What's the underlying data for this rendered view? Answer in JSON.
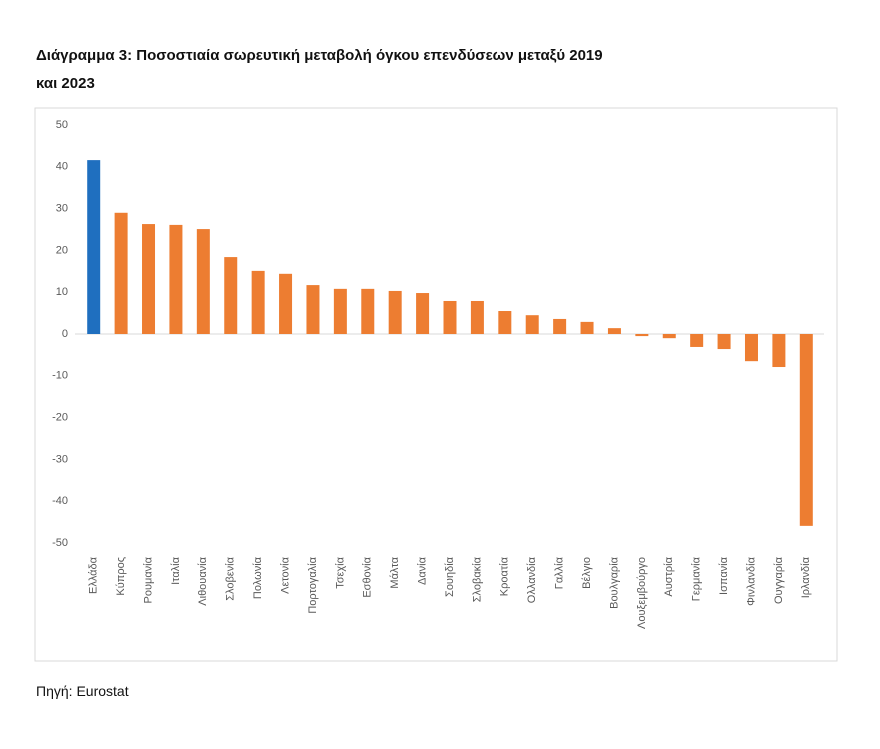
{
  "title_lines": [
    "Διάγραμμα 3:  Ποσοστιαία σωρευτική μεταβολή όγκου επενδύσεων μεταξύ 2019",
    "και 2023"
  ],
  "source": "Πηγή: Eurostat",
  "chart_data": {
    "type": "bar",
    "categories": [
      "Ελλάδα",
      "Κύπρος",
      "Ρουμανία",
      "Ιταλία",
      "Λιθουανία",
      "Σλοβενία",
      "Πολωνία",
      "Λετονία",
      "Πορτογαλία",
      "Τσεχία",
      "Εσθονία",
      "Μάλτα",
      "Δανία",
      "Σουηδία",
      "Σλοβακία",
      "Κροατία",
      "Ολλανδία",
      "Γαλλία",
      "Βέλγιο",
      "Βουλγαρία",
      "Λουξεμβούργο",
      "Αυστρία",
      "Γερμανία",
      "Ισπανία",
      "Φινλανδία",
      "Ουγγαρία",
      "Ιρλανδία"
    ],
    "values": [
      41.6,
      29,
      26.3,
      26.1,
      25.1,
      18.4,
      15.1,
      14.4,
      11.7,
      10.8,
      10.8,
      10.3,
      9.8,
      7.9,
      7.9,
      5.5,
      4.5,
      3.6,
      2.9,
      1.4,
      -0.5,
      -1,
      -3.1,
      -3.6,
      -6.5,
      -7.9,
      -45.9
    ],
    "colors": [
      "#1f6fbf",
      "#ed7d31",
      "#ed7d31",
      "#ed7d31",
      "#ed7d31",
      "#ed7d31",
      "#ed7d31",
      "#ed7d31",
      "#ed7d31",
      "#ed7d31",
      "#ed7d31",
      "#ed7d31",
      "#ed7d31",
      "#ed7d31",
      "#ed7d31",
      "#ed7d31",
      "#ed7d31",
      "#ed7d31",
      "#ed7d31",
      "#ed7d31",
      "#ed7d31",
      "#ed7d31",
      "#ed7d31",
      "#ed7d31",
      "#ed7d31",
      "#ed7d31",
      "#ed7d31"
    ],
    "ylim": [
      -50,
      50
    ],
    "yticks": [
      -50,
      -40,
      -30,
      -20,
      -10,
      0,
      10,
      20,
      30,
      40,
      50
    ],
    "grid": false
  }
}
